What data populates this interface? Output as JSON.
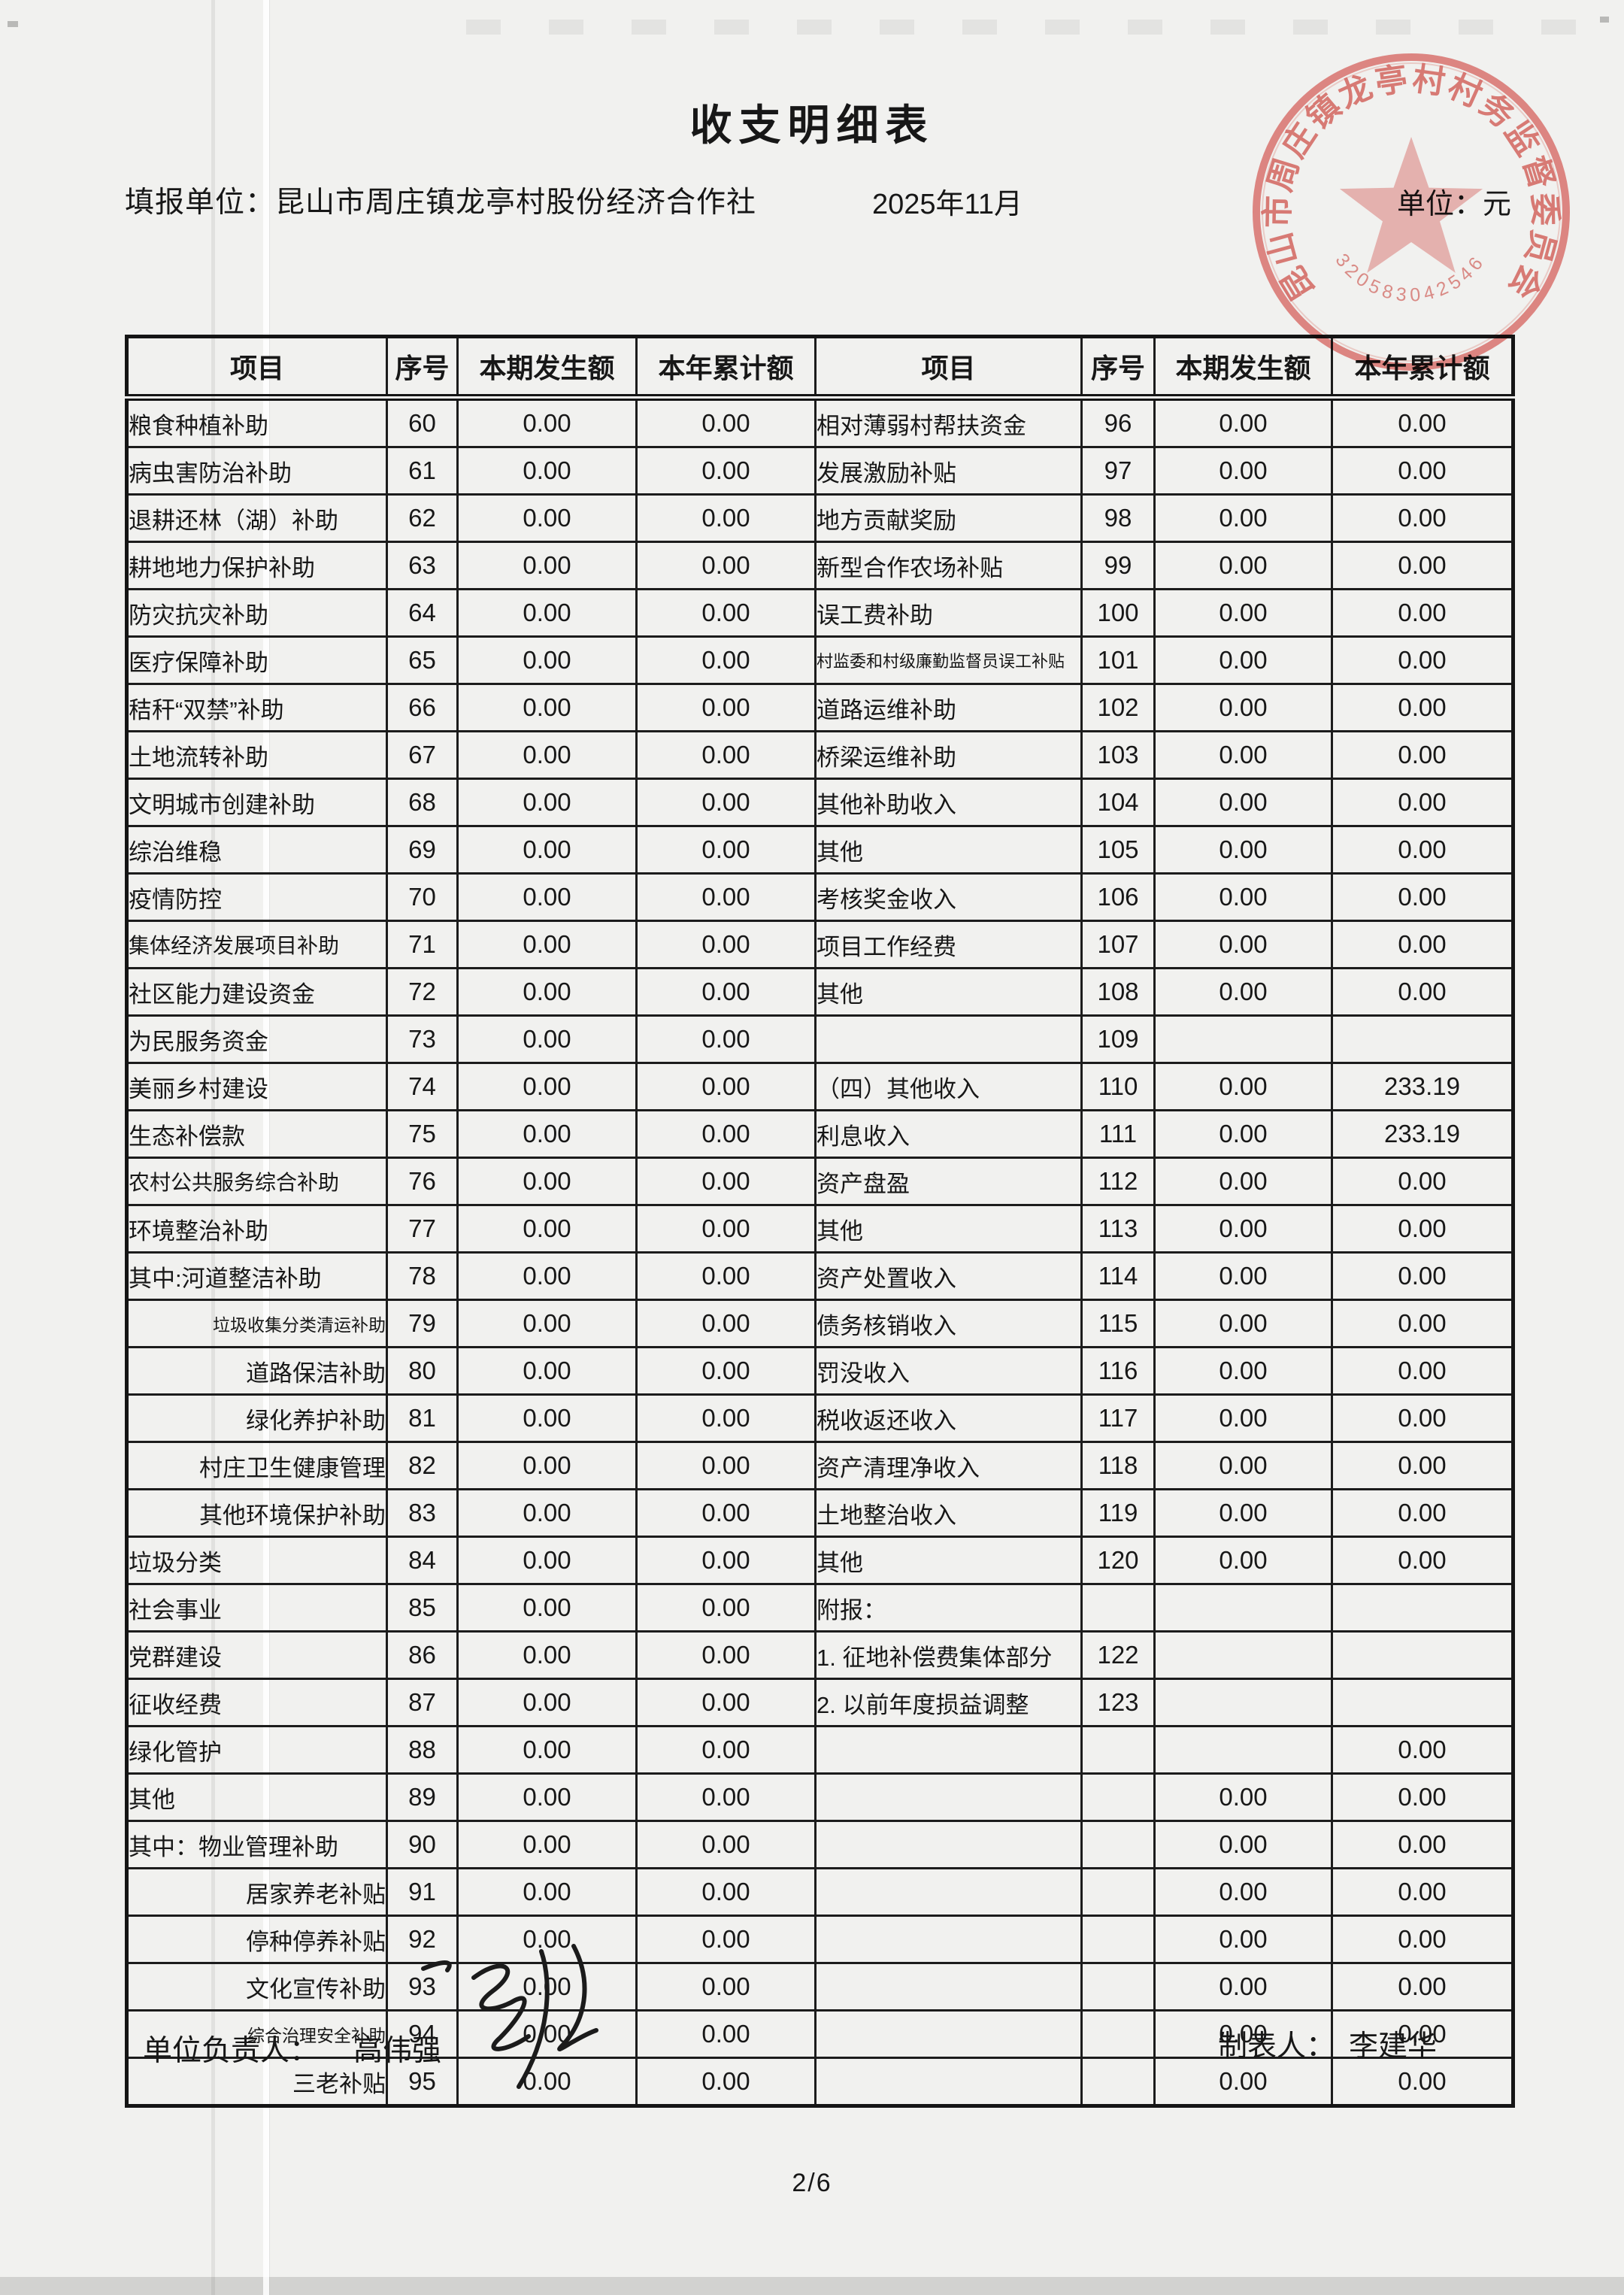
{
  "page": {
    "title": "收支明细表",
    "report_unit_label": "填报单位：",
    "report_unit": "昆山市周庄镇龙亭村股份经济合作社",
    "period": "2025年11月",
    "unit_label": "单位：元",
    "page_number": "2/6",
    "footer": {
      "responsible_label": "单位负责人：",
      "responsible_name": "高伟强",
      "preparer_label": "制表人：",
      "preparer_name": "李建华"
    },
    "seal": {
      "text": "昆山市周庄镇龙亭村村务监督委员会",
      "serial": "320583042546",
      "color": "#dc5a55"
    }
  },
  "table": {
    "headers": [
      "项目",
      "序号",
      "本期发生额",
      "本年累计额",
      "项目",
      "序号",
      "本期发生额",
      "本年累计额"
    ],
    "rows": [
      {
        "l": {
          "item": "粮食种植补助",
          "no": "60",
          "cur": "0.00",
          "ytd": "0.00",
          "ic": "i2"
        },
        "r": {
          "item": "相对薄弱村帮扶资金",
          "no": "96",
          "cur": "0.00",
          "ytd": "0.00",
          "ic": "i2"
        }
      },
      {
        "l": {
          "item": "病虫害防治补助",
          "no": "61",
          "cur": "0.00",
          "ytd": "0.00",
          "ic": "i2"
        },
        "r": {
          "item": "发展激励补贴",
          "no": "97",
          "cur": "0.00",
          "ytd": "0.00",
          "ic": "i2"
        }
      },
      {
        "l": {
          "item": "退耕还林（湖）补助",
          "no": "62",
          "cur": "0.00",
          "ytd": "0.00",
          "ic": "i2"
        },
        "r": {
          "item": "地方贡献奖励",
          "no": "98",
          "cur": "0.00",
          "ytd": "0.00",
          "ic": "i2"
        }
      },
      {
        "l": {
          "item": "耕地地力保护补助",
          "no": "63",
          "cur": "0.00",
          "ytd": "0.00",
          "ic": "i2"
        },
        "r": {
          "item": "新型合作农场补贴",
          "no": "99",
          "cur": "0.00",
          "ytd": "0.00",
          "ic": "i2"
        }
      },
      {
        "l": {
          "item": "防灾抗灾补助",
          "no": "64",
          "cur": "0.00",
          "ytd": "0.00",
          "ic": "i2"
        },
        "r": {
          "item": "误工费补助",
          "no": "100",
          "cur": "0.00",
          "ytd": "0.00",
          "ic": "i2"
        }
      },
      {
        "l": {
          "item": "医疗保障补助",
          "no": "65",
          "cur": "0.00",
          "ytd": "0.00",
          "ic": "i2"
        },
        "r": {
          "item": "村监委和村级廉勤监督员误工补贴",
          "no": "101",
          "cur": "0.00",
          "ytd": "0.00",
          "ic": "bsm"
        }
      },
      {
        "l": {
          "item": "秸秆“双禁”补助",
          "no": "66",
          "cur": "0.00",
          "ytd": "0.00",
          "ic": "i2"
        },
        "r": {
          "item": "道路运维补助",
          "no": "102",
          "cur": "0.00",
          "ytd": "0.00",
          "ic": "i2"
        }
      },
      {
        "l": {
          "item": "土地流转补助",
          "no": "67",
          "cur": "0.00",
          "ytd": "0.00",
          "ic": "i2"
        },
        "r": {
          "item": "桥梁运维补助",
          "no": "103",
          "cur": "0.00",
          "ytd": "0.00",
          "ic": "i2"
        }
      },
      {
        "l": {
          "item": "文明城市创建补助",
          "no": "68",
          "cur": "0.00",
          "ytd": "0.00",
          "ic": "i2"
        },
        "r": {
          "item": "其他补助收入",
          "no": "104",
          "cur": "0.00",
          "ytd": "0.00",
          "ic": "i2"
        }
      },
      {
        "l": {
          "item": "综治维稳",
          "no": "69",
          "cur": "0.00",
          "ytd": "0.00",
          "ic": "i2"
        },
        "r": {
          "item": "其他",
          "no": "105",
          "cur": "0.00",
          "ytd": "0.00",
          "ic": "i2"
        }
      },
      {
        "l": {
          "item": "疫情防控",
          "no": "70",
          "cur": "0.00",
          "ytd": "0.00",
          "ic": "i2"
        },
        "r": {
          "item": "考核奖金收入",
          "no": "106",
          "cur": "0.00",
          "ytd": "0.00",
          "ic": "i3"
        }
      },
      {
        "l": {
          "item": "集体经济发展项目补助",
          "no": "71",
          "cur": "0.00",
          "ytd": "0.00",
          "ic": "tight"
        },
        "r": {
          "item": "项目工作经费",
          "no": "107",
          "cur": "0.00",
          "ytd": "0.00",
          "ic": "i3"
        }
      },
      {
        "l": {
          "item": "社区能力建设资金",
          "no": "72",
          "cur": "0.00",
          "ytd": "0.00",
          "ic": "i2"
        },
        "r": {
          "item": "其他",
          "no": "108",
          "cur": "0.00",
          "ytd": "0.00",
          "ic": "i3"
        }
      },
      {
        "l": {
          "item": "为民服务资金",
          "no": "73",
          "cur": "0.00",
          "ytd": "0.00",
          "ic": "i2"
        },
        "r": {
          "item": "",
          "no": "109",
          "cur": "",
          "ytd": "",
          "ic": "i2"
        }
      },
      {
        "l": {
          "item": "美丽乡村建设",
          "no": "74",
          "cur": "0.00",
          "ytd": "0.00",
          "ic": "i2"
        },
        "r": {
          "item": "（四）其他收入",
          "no": "110",
          "cur": "0.00",
          "ytd": "233.19",
          "ic": "i0"
        }
      },
      {
        "l": {
          "item": "生态补偿款",
          "no": "75",
          "cur": "0.00",
          "ytd": "0.00",
          "ic": "i2"
        },
        "r": {
          "item": "利息收入",
          "no": "111",
          "cur": "0.00",
          "ytd": "233.19",
          "ic": "i2"
        }
      },
      {
        "l": {
          "item": "农村公共服务综合补助",
          "no": "76",
          "cur": "0.00",
          "ytd": "0.00",
          "ic": "tight"
        },
        "r": {
          "item": "资产盘盈",
          "no": "112",
          "cur": "0.00",
          "ytd": "0.00",
          "ic": "i2"
        }
      },
      {
        "l": {
          "item": "环境整治补助",
          "no": "77",
          "cur": "0.00",
          "ytd": "0.00",
          "ic": "i2"
        },
        "r": {
          "item": "其他",
          "no": "113",
          "cur": "0.00",
          "ytd": "0.00",
          "ic": "i2"
        }
      },
      {
        "l": {
          "item": "其中:河道整洁补助",
          "no": "78",
          "cur": "0.00",
          "ytd": "0.00",
          "ic": "qz"
        },
        "r": {
          "item": "资产处置收入",
          "no": "114",
          "cur": "0.00",
          "ytd": "0.00",
          "ic": "i3"
        }
      },
      {
        "l": {
          "item": "垃圾收集分类清运补助",
          "no": "79",
          "cur": "0.00",
          "ytd": "0.00",
          "ic": "subsm"
        },
        "r": {
          "item": "债务核销收入",
          "no": "115",
          "cur": "0.00",
          "ytd": "0.00",
          "ic": "i3"
        }
      },
      {
        "l": {
          "item": "道路保洁补助",
          "no": "80",
          "cur": "0.00",
          "ytd": "0.00",
          "ic": "sub"
        },
        "r": {
          "item": "罚没收入",
          "no": "116",
          "cur": "0.00",
          "ytd": "0.00",
          "ic": "i3"
        }
      },
      {
        "l": {
          "item": "绿化养护补助",
          "no": "81",
          "cur": "0.00",
          "ytd": "0.00",
          "ic": "sub"
        },
        "r": {
          "item": "税收返还收入",
          "no": "117",
          "cur": "0.00",
          "ytd": "0.00",
          "ic": "i3"
        }
      },
      {
        "l": {
          "item": "村庄卫生健康管理",
          "no": "82",
          "cur": "0.00",
          "ytd": "0.00",
          "ic": "sub"
        },
        "r": {
          "item": "资产清理净收入",
          "no": "118",
          "cur": "0.00",
          "ytd": "0.00",
          "ic": "i3"
        }
      },
      {
        "l": {
          "item": "其他环境保护补助",
          "no": "83",
          "cur": "0.00",
          "ytd": "0.00",
          "ic": "sub"
        },
        "r": {
          "item": "土地整治收入",
          "no": "119",
          "cur": "0.00",
          "ytd": "0.00",
          "ic": "i3"
        }
      },
      {
        "l": {
          "item": "垃圾分类",
          "no": "84",
          "cur": "0.00",
          "ytd": "0.00",
          "ic": "i2"
        },
        "r": {
          "item": "其他",
          "no": "120",
          "cur": "0.00",
          "ytd": "0.00",
          "ic": "i3"
        }
      },
      {
        "l": {
          "item": "社会事业",
          "no": "85",
          "cur": "0.00",
          "ytd": "0.00",
          "ic": "i2"
        },
        "r": {
          "item": "附报：",
          "no": "",
          "cur": "",
          "ytd": "",
          "ic": "i0"
        }
      },
      {
        "l": {
          "item": "党群建设",
          "no": "86",
          "cur": "0.00",
          "ytd": "0.00",
          "ic": "i2"
        },
        "r": {
          "item": "1. 征地补偿费集体部分",
          "no": "122",
          "cur": "",
          "ytd": "",
          "ic": "i1"
        }
      },
      {
        "l": {
          "item": "征收经费",
          "no": "87",
          "cur": "0.00",
          "ytd": "0.00",
          "ic": "i2"
        },
        "r": {
          "item": "2. 以前年度损益调整",
          "no": "123",
          "cur": "",
          "ytd": "",
          "ic": "i1"
        }
      },
      {
        "l": {
          "item": "绿化管护",
          "no": "88",
          "cur": "0.00",
          "ytd": "0.00",
          "ic": "i2"
        },
        "r": {
          "item": "",
          "no": "",
          "cur": "",
          "ytd": "0.00",
          "ic": "i2"
        }
      },
      {
        "l": {
          "item": "其他",
          "no": "89",
          "cur": "0.00",
          "ytd": "0.00",
          "ic": "i2"
        },
        "r": {
          "item": "",
          "no": "",
          "cur": "0.00",
          "ytd": "0.00",
          "ic": "i2"
        }
      },
      {
        "l": {
          "item": "其中：物业管理补助",
          "no": "90",
          "cur": "0.00",
          "ytd": "0.00",
          "ic": "qz"
        },
        "r": {
          "item": "",
          "no": "",
          "cur": "0.00",
          "ytd": "0.00",
          "ic": "i2"
        }
      },
      {
        "l": {
          "item": "居家养老补贴",
          "no": "91",
          "cur": "0.00",
          "ytd": "0.00",
          "ic": "sub"
        },
        "r": {
          "item": "",
          "no": "",
          "cur": "0.00",
          "ytd": "0.00",
          "ic": "i2"
        }
      },
      {
        "l": {
          "item": "停种停养补贴",
          "no": "92",
          "cur": "0.00",
          "ytd": "0.00",
          "ic": "sub"
        },
        "r": {
          "item": "",
          "no": "",
          "cur": "0.00",
          "ytd": "0.00",
          "ic": "i2"
        }
      },
      {
        "l": {
          "item": "文化宣传补助",
          "no": "93",
          "cur": "0.00",
          "ytd": "0.00",
          "ic": "sub"
        },
        "r": {
          "item": "",
          "no": "",
          "cur": "0.00",
          "ytd": "0.00",
          "ic": "i2"
        }
      },
      {
        "l": {
          "item": "综合治理安全补助",
          "no": "94",
          "cur": "0.00",
          "ytd": "0.00",
          "ic": "subsm"
        },
        "r": {
          "item": "",
          "no": "",
          "cur": "0.00",
          "ytd": "0.00",
          "ic": "i2"
        }
      },
      {
        "l": {
          "item": "三老补贴",
          "no": "95",
          "cur": "0.00",
          "ytd": "0.00",
          "ic": "sub"
        },
        "r": {
          "item": "",
          "no": "",
          "cur": "0.00",
          "ytd": "0.00",
          "ic": "i2"
        }
      }
    ]
  }
}
